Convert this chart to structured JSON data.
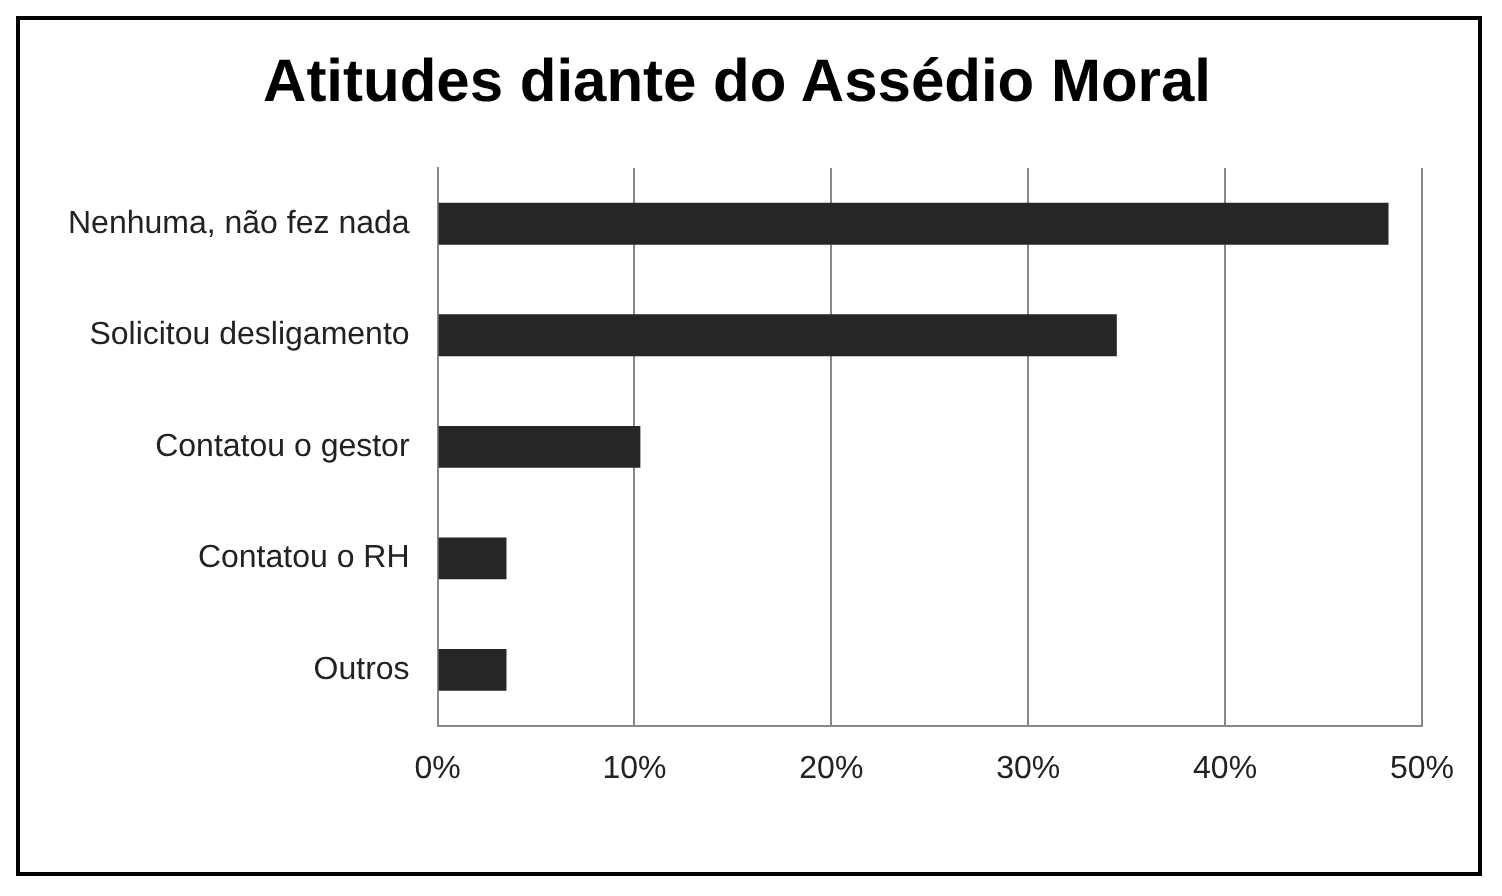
{
  "chart_data": {
    "type": "bar",
    "orientation": "horizontal",
    "title": "Atitudes diante do Assédio Moral",
    "categories": [
      "Nenhuma, não fez nada",
      "Solicitou desligamento",
      "Contatou o gestor",
      "Contatou o RH",
      "Outros"
    ],
    "values": [
      48.3,
      34.5,
      10.3,
      3.5,
      3.5
    ],
    "color": "#262626",
    "xlim": [
      0,
      50
    ],
    "xticks": [
      {
        "value": 0,
        "label": "0%"
      },
      {
        "value": 10,
        "label": "10%"
      },
      {
        "value": 20,
        "label": "20%"
      },
      {
        "value": 30,
        "label": "30%"
      },
      {
        "value": 40,
        "label": "40%"
      },
      {
        "value": 50,
        "label": "50%"
      }
    ],
    "grid": "x",
    "legend": false
  }
}
